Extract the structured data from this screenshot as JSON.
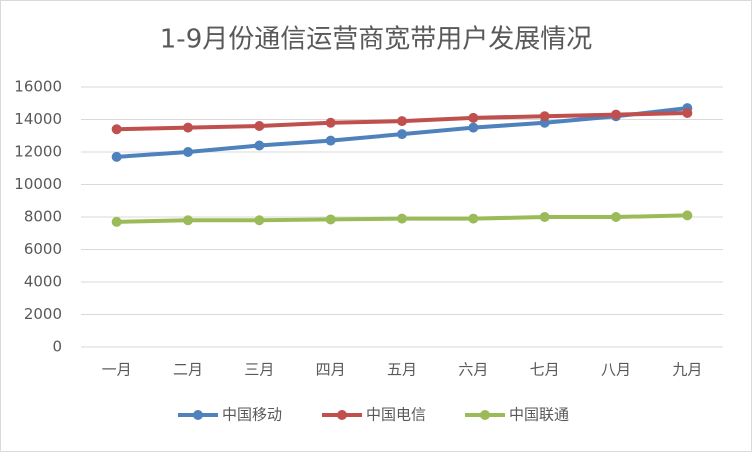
{
  "chart_data": {
    "type": "line",
    "title": "1-9月份通信运营商宽带用户发展情况",
    "categories": [
      "一月",
      "二月",
      "三月",
      "四月",
      "五月",
      "六月",
      "七月",
      "八月",
      "九月"
    ],
    "series": [
      {
        "name": "中国移动",
        "color": "#4f81bd",
        "values": [
          11700,
          12000,
          12400,
          12700,
          13100,
          13500,
          13800,
          14200,
          14700
        ]
      },
      {
        "name": "中国电信",
        "color": "#c0504d",
        "values": [
          13400,
          13500,
          13600,
          13800,
          13900,
          14100,
          14200,
          14300,
          14400
        ]
      },
      {
        "name": "中国联通",
        "color": "#9bbb59",
        "values": [
          7700,
          7800,
          7800,
          7850,
          7900,
          7900,
          8000,
          8000,
          8100
        ]
      }
    ],
    "ylim": [
      0,
      16000
    ],
    "yticks": [
      0,
      2000,
      4000,
      6000,
      8000,
      10000,
      12000,
      14000,
      16000
    ],
    "grid": true,
    "legend": "bottom"
  }
}
